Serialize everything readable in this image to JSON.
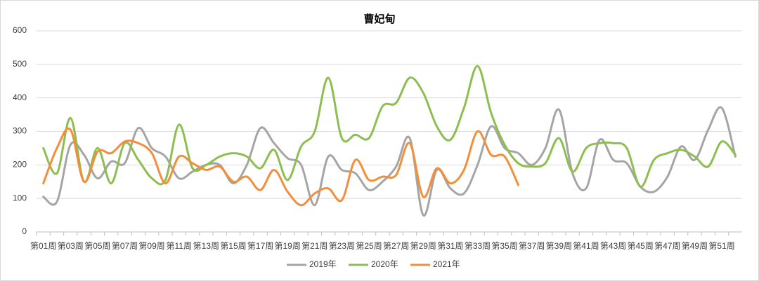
{
  "chart_data": {
    "type": "line",
    "title": "曹妃甸",
    "categories": [
      "第01周",
      null,
      "第03周",
      null,
      "第05周",
      null,
      "第07周",
      null,
      "第09周",
      null,
      "第11周",
      null,
      "第13周",
      null,
      "第15周",
      null,
      "第17周",
      null,
      "第19周",
      null,
      "第21周",
      null,
      "第23周",
      null,
      "第25周",
      null,
      "第27周",
      null,
      "第29周",
      null,
      "第31周",
      null,
      "第33周",
      null,
      "第35周",
      null,
      "第37周",
      null,
      "第39周",
      null,
      "第41周",
      null,
      "第43周",
      null,
      "第45周",
      null,
      "第47周",
      null,
      "第49周",
      null,
      "第51周",
      null
    ],
    "series": [
      {
        "name": "2019年",
        "color": "#a5a5a5",
        "values": [
          105,
          90,
          260,
          230,
          160,
          210,
          205,
          310,
          250,
          225,
          160,
          180,
          200,
          200,
          145,
          200,
          310,
          265,
          220,
          200,
          80,
          225,
          185,
          175,
          125,
          150,
          195,
          280,
          50,
          185,
          130,
          115,
          200,
          315,
          250,
          235,
          200,
          250,
          365,
          175,
          130,
          275,
          215,
          205,
          135,
          120,
          165,
          255,
          215,
          305,
          370,
          225
        ]
      },
      {
        "name": "2020年",
        "color": "#8cbf4f",
        "values": [
          250,
          175,
          340,
          150,
          250,
          145,
          265,
          215,
          160,
          155,
          320,
          190,
          200,
          225,
          235,
          225,
          190,
          245,
          155,
          255,
          300,
          460,
          280,
          290,
          280,
          375,
          385,
          460,
          415,
          315,
          275,
          370,
          495,
          355,
          260,
          205,
          195,
          205,
          280,
          180,
          250,
          265,
          265,
          250,
          135,
          215,
          235,
          245,
          225,
          195,
          270,
          230
        ]
      },
      {
        "name": "2021年",
        "color": "#f28e3c",
        "values": [
          145,
          250,
          305,
          150,
          240,
          235,
          270,
          265,
          235,
          145,
          225,
          205,
          185,
          195,
          150,
          165,
          125,
          185,
          120,
          80,
          115,
          130,
          95,
          215,
          155,
          165,
          170,
          265,
          105,
          190,
          145,
          185,
          300,
          230,
          225,
          140,
          null,
          null,
          null,
          null,
          null,
          null,
          null,
          null,
          null,
          null,
          null,
          null,
          null,
          null,
          null,
          null
        ]
      }
    ],
    "ylim": [
      0,
      600
    ],
    "yticks": [
      0,
      100,
      200,
      300,
      400,
      500,
      600
    ],
    "grid": true,
    "legend": "bottom"
  }
}
